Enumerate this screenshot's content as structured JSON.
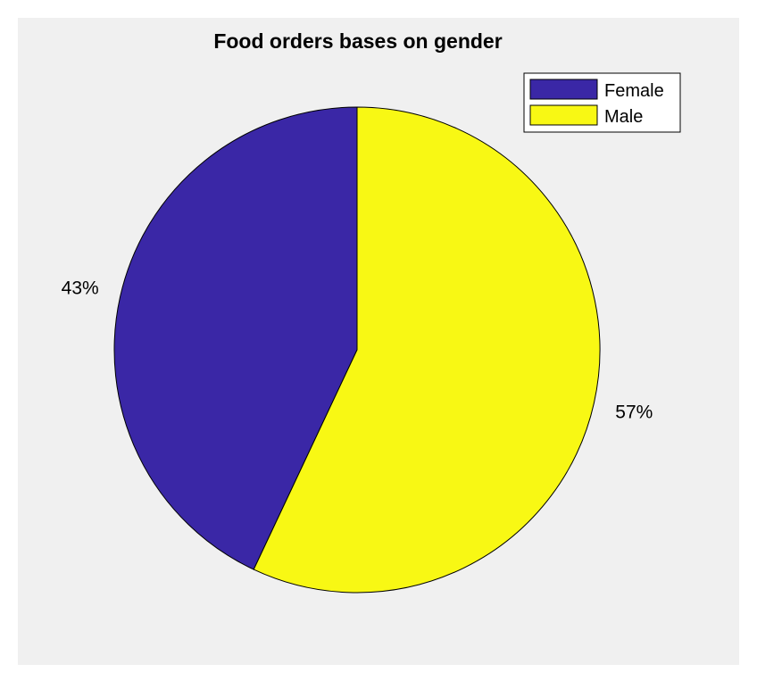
{
  "chart_data": {
    "type": "pie",
    "title": "Food orders bases on gender",
    "slices": [
      {
        "name": "Female",
        "value": 43,
        "label": "43%",
        "color": "#3a27a6"
      },
      {
        "name": "Male",
        "value": 57,
        "label": "57%",
        "color": "#f8f814"
      }
    ],
    "legend_position": "top-right",
    "background_color": "#f0f0f0"
  }
}
